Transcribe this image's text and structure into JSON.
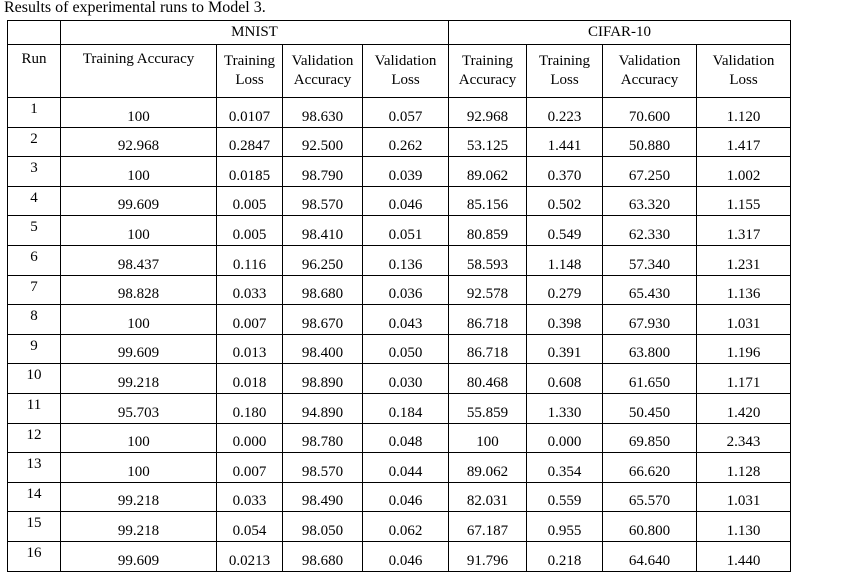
{
  "caption": "Results of experimental runs to Model 3.",
  "groups": {
    "mnist": "MNIST",
    "cifar": "CIFAR-10"
  },
  "headers": {
    "run": "Run",
    "mnist_training_accuracy": "Training Accuracy",
    "mnist_training_loss": [
      "Training",
      "Loss"
    ],
    "mnist_validation_accuracy": [
      "Validation",
      "Accuracy"
    ],
    "mnist_validation_loss": [
      "Validation",
      "Loss"
    ],
    "cifar_training_accuracy": [
      "Training",
      "Accuracy"
    ],
    "cifar_training_loss": [
      "Training",
      "Loss"
    ],
    "cifar_validation_accuracy": [
      "Validation",
      "Accuracy"
    ],
    "cifar_validation_loss": [
      "Validation",
      "Loss"
    ]
  },
  "rows": [
    [
      "1",
      "100",
      "0.0107",
      "98.630",
      "0.057",
      "92.968",
      "0.223",
      "70.600",
      "1.120"
    ],
    [
      "2",
      "92.968",
      "0.2847",
      "92.500",
      "0.262",
      "53.125",
      "1.441",
      "50.880",
      "1.417"
    ],
    [
      "3",
      "100",
      "0.0185",
      "98.790",
      "0.039",
      "89.062",
      "0.370",
      "67.250",
      "1.002"
    ],
    [
      "4",
      "99.609",
      "0.005",
      "98.570",
      "0.046",
      "85.156",
      "0.502",
      "63.320",
      "1.155"
    ],
    [
      "5",
      "100",
      "0.005",
      "98.410",
      "0.051",
      "80.859",
      "0.549",
      "62.330",
      "1.317"
    ],
    [
      "6",
      "98.437",
      "0.116",
      "96.250",
      "0.136",
      "58.593",
      "1.148",
      "57.340",
      "1.231"
    ],
    [
      "7",
      "98.828",
      "0.033",
      "98.680",
      "0.036",
      "92.578",
      "0.279",
      "65.430",
      "1.136"
    ],
    [
      "8",
      "100",
      "0.007",
      "98.670",
      "0.043",
      "86.718",
      "0.398",
      "67.930",
      "1.031"
    ],
    [
      "9",
      "99.609",
      "0.013",
      "98.400",
      "0.050",
      "86.718",
      "0.391",
      "63.800",
      "1.196"
    ],
    [
      "10",
      "99.218",
      "0.018",
      "98.890",
      "0.030",
      "80.468",
      "0.608",
      "61.650",
      "1.171"
    ],
    [
      "11",
      "95.703",
      "0.180",
      "94.890",
      "0.184",
      "55.859",
      "1.330",
      "50.450",
      "1.420"
    ],
    [
      "12",
      "100",
      "0.000",
      "98.780",
      "0.048",
      "100",
      "0.000",
      "69.850",
      "2.343"
    ],
    [
      "13",
      "100",
      "0.007",
      "98.570",
      "0.044",
      "89.062",
      "0.354",
      "66.620",
      "1.128"
    ],
    [
      "14",
      "99.218",
      "0.033",
      "98.490",
      "0.046",
      "82.031",
      "0.559",
      "65.570",
      "1.031"
    ],
    [
      "15",
      "99.218",
      "0.054",
      "98.050",
      "0.062",
      "67.187",
      "0.955",
      "60.800",
      "1.130"
    ],
    [
      "16",
      "99.609",
      "0.0213",
      "98.680",
      "0.046",
      "91.796",
      "0.218",
      "64.640",
      "1.440"
    ]
  ]
}
